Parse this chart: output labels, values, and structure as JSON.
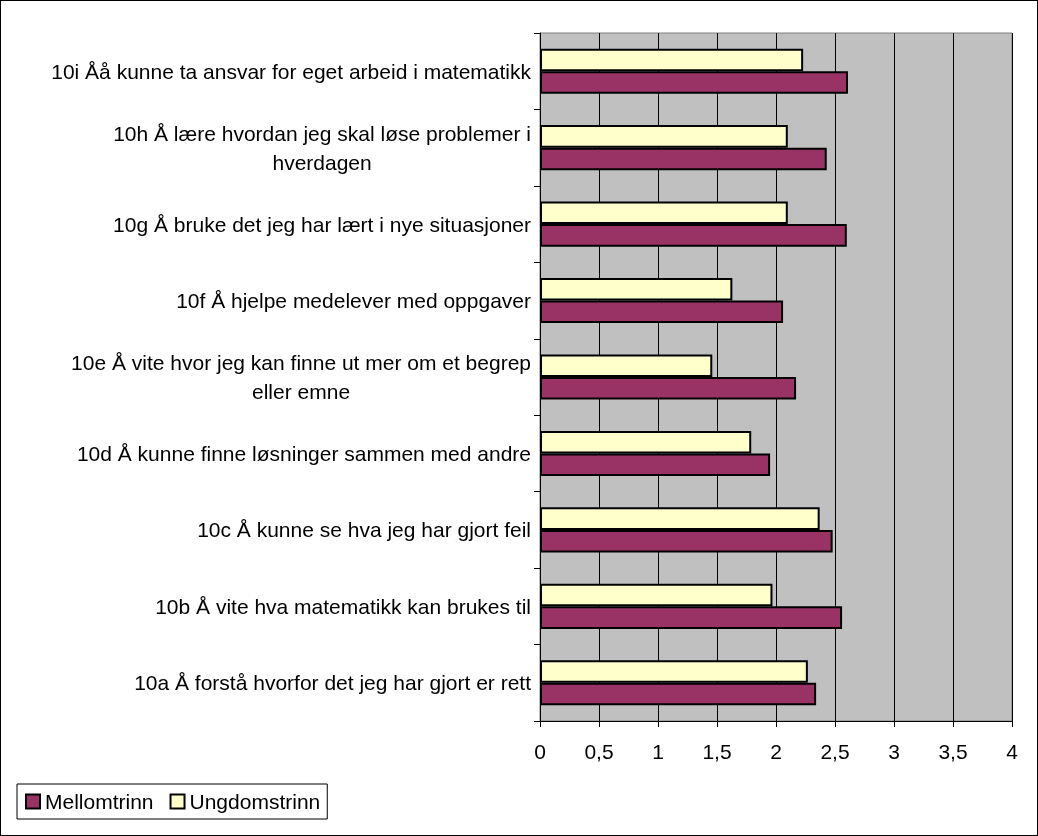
{
  "chart_data": {
    "type": "bar",
    "orientation": "horizontal",
    "categories": [
      "10i Åå kunne ta ansvar for eget arbeid i matematikk",
      "10h Å lære hvordan jeg skal løse problemer i hverdagen",
      "10g Å bruke det jeg har lært i nye situasjoner",
      "10f Å hjelpe medelever med oppgaver",
      "10e Å vite hvor jeg kan finne ut mer om et begrep eller emne",
      "10d Å kunne finne løsninger sammen med andre",
      "10c Å kunne se hva jeg har gjort feil",
      "10b Å vite hva matematikk kan brukes til",
      "10a Å forstå hvorfor det jeg har gjort er rett"
    ],
    "series": [
      {
        "name": "Mellomtrinn",
        "color": "#993366",
        "values": [
          2.61,
          2.43,
          2.6,
          2.06,
          2.17,
          1.95,
          2.48,
          2.56,
          2.34
        ]
      },
      {
        "name": "Ungdomstrinn",
        "color": "#ffffcc",
        "values": [
          2.23,
          2.1,
          2.1,
          1.63,
          1.46,
          1.79,
          2.37,
          1.97,
          2.27
        ]
      }
    ],
    "xlim": [
      0,
      4
    ],
    "xticks": [
      0,
      {
        "value": 0.5,
        "label": "0,5"
      },
      1,
      {
        "value": 1.5,
        "label": "1,5"
      },
      2,
      {
        "value": 2.5,
        "label": "2,5"
      },
      3,
      {
        "value": 3.5,
        "label": "3,5"
      },
      4
    ],
    "grid": "x",
    "legend": "bottom left"
  }
}
